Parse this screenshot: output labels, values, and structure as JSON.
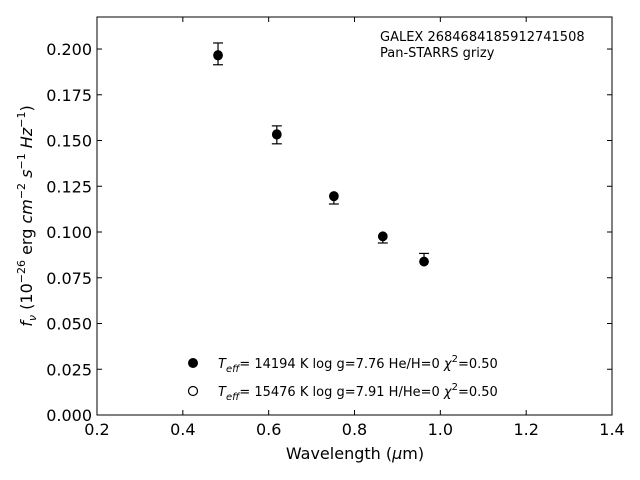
{
  "chart_data": {
    "type": "scatter",
    "annotation_lines": [
      "GALEX 2684684185912741508",
      "Pan-STARRS grizy"
    ],
    "xlabel": {
      "main": "Wavelength (",
      "mu": "μ",
      "tail": "m)"
    },
    "ylabel": {
      "f": "f",
      "nu": "ν",
      "open": " (10",
      "exp1": "−26",
      "erg": " erg ",
      "cm": "cm",
      "exp2": "−2",
      "s": "s",
      "exp3": "−1",
      "hz": "Hz",
      "exp4": "−1",
      "close": ")"
    },
    "xlim": [
      0.2,
      1.4
    ],
    "ylim": [
      0.0,
      0.2175
    ],
    "xticks": [
      0.2,
      0.4,
      0.6,
      0.8,
      1.0,
      1.2,
      1.4
    ],
    "xtick_labels": [
      "0.2",
      "0.4",
      "0.6",
      "0.8",
      "1.0",
      "1.2",
      "1.4"
    ],
    "yticks": [
      0.0,
      0.025,
      0.05,
      0.075,
      0.1,
      0.125,
      0.15,
      0.175,
      0.2
    ],
    "ytick_labels": [
      "0.000",
      "0.025",
      "0.050",
      "0.075",
      "0.100",
      "0.125",
      "0.150",
      "0.175",
      "0.200"
    ],
    "grid": false,
    "series": [
      {
        "marker": "filled-circle-errorbar",
        "color": "#000000",
        "x": [
          0.482,
          0.619,
          0.752,
          0.866,
          0.962
        ],
        "y": [
          0.1968,
          0.1536,
          0.1198,
          0.0976,
          0.0838
        ],
        "yerr_low": [
          0.0054,
          0.0054,
          0.0045,
          0.0036,
          0.0
        ],
        "yerr_high": [
          0.0065,
          0.0044,
          0.0,
          0.0,
          0.0045
        ]
      },
      {
        "marker": "filled-circle",
        "color": "#000000",
        "x": [
          0.482,
          0.619,
          0.752,
          0.866,
          0.962
        ],
        "y": [
          0.1965,
          0.1531,
          0.1194,
          0.0975,
          0.0838
        ]
      },
      {
        "marker": "open-circle",
        "color": "#000000",
        "x": [
          0.482,
          0.619,
          0.752,
          0.866,
          0.962
        ],
        "y": [
          0.1964,
          0.1532,
          0.1196,
          0.0977,
          0.0839
        ]
      }
    ],
    "legend": {
      "placement": "lower-center",
      "entries": [
        {
          "marker": "filled-circle",
          "T": "T",
          "eff": "eff",
          "text": "= 14194 K  log g=7.76  He/H=0  ",
          "chi": "χ",
          "sq": "2",
          "chival": "=0.50"
        },
        {
          "marker": "open-circle",
          "T": "T",
          "eff": "eff",
          "text": "= 15476 K  log g=7.91  H/He=0  ",
          "chi": "χ",
          "sq": "2",
          "chival": "=0.50"
        }
      ]
    }
  }
}
